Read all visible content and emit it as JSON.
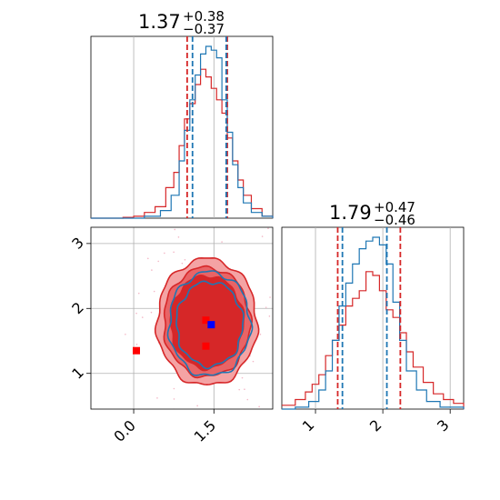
{
  "colors": {
    "red": "#d62728",
    "blue": "#1f77b4",
    "light_red": "#f4a3a4",
    "mid_red": "#e86466",
    "grid": "#b0b0b0",
    "marker_red": "#ff0000",
    "marker_blue": "#0000ff"
  },
  "chart_data": [
    {
      "type": "histogram",
      "panel": "top-left",
      "parameter_index": 0,
      "title": {
        "median": "1.37",
        "plus": "+0.38",
        "minus": "−0.37"
      },
      "xlim": [
        -0.8,
        2.6
      ],
      "grid": true,
      "ticks_shown": false,
      "quantiles": {
        "red": [
          1.0,
          1.75
        ],
        "blue": [
          1.1,
          1.73
        ]
      },
      "series": [
        {
          "color": "red",
          "bins": [
            [
              -0.8,
              0.0
            ],
            [
              -0.2,
              0.004
            ],
            [
              0.0,
              0.01
            ],
            [
              0.2,
              0.03
            ],
            [
              0.4,
              0.06
            ],
            [
              0.6,
              0.16
            ],
            [
              0.75,
              0.24
            ],
            [
              0.85,
              0.38
            ],
            [
              0.95,
              0.52
            ],
            [
              1.05,
              0.6
            ],
            [
              1.15,
              0.7
            ],
            [
              1.25,
              0.78
            ],
            [
              1.35,
              0.74
            ],
            [
              1.45,
              0.68
            ],
            [
              1.55,
              0.62
            ],
            [
              1.65,
              0.55
            ],
            [
              1.75,
              0.42
            ],
            [
              1.85,
              0.3
            ],
            [
              1.95,
              0.2
            ],
            [
              2.05,
              0.12
            ],
            [
              2.2,
              0.05
            ],
            [
              2.4,
              0.01
            ],
            [
              2.6,
              0.0
            ]
          ]
        },
        {
          "color": "blue",
          "bins": [
            [
              -0.8,
              0.0
            ],
            [
              0.2,
              0.01
            ],
            [
              0.5,
              0.04
            ],
            [
              0.7,
              0.12
            ],
            [
              0.85,
              0.3
            ],
            [
              0.95,
              0.46
            ],
            [
              1.05,
              0.62
            ],
            [
              1.15,
              0.75
            ],
            [
              1.25,
              0.86
            ],
            [
              1.35,
              0.9
            ],
            [
              1.45,
              0.88
            ],
            [
              1.55,
              0.84
            ],
            [
              1.65,
              0.62
            ],
            [
              1.75,
              0.45
            ],
            [
              1.85,
              0.28
            ],
            [
              1.95,
              0.16
            ],
            [
              2.05,
              0.08
            ],
            [
              2.2,
              0.03
            ],
            [
              2.4,
              0.01
            ],
            [
              2.6,
              0.0
            ]
          ]
        }
      ]
    },
    {
      "type": "histogram",
      "panel": "bottom-right",
      "parameter_index": 1,
      "title": {
        "median": "1.79",
        "plus": "+0.47",
        "minus": "−0.46"
      },
      "xlim": [
        0.5,
        3.2
      ],
      "xticks": [
        1,
        2,
        3
      ],
      "tick_labels": [
        "1",
        "2",
        "3"
      ],
      "grid": true,
      "quantiles": {
        "red": [
          1.33,
          2.26
        ],
        "blue": [
          1.4,
          2.06
        ]
      },
      "series": [
        {
          "color": "red",
          "bins": [
            [
              0.5,
              0.02
            ],
            [
              0.7,
              0.05
            ],
            [
              0.85,
              0.09
            ],
            [
              0.95,
              0.13
            ],
            [
              1.05,
              0.18
            ],
            [
              1.15,
              0.28
            ],
            [
              1.25,
              0.36
            ],
            [
              1.35,
              0.44
            ],
            [
              1.45,
              0.54
            ],
            [
              1.55,
              0.58
            ],
            [
              1.65,
              0.62
            ],
            [
              1.75,
              0.72
            ],
            [
              1.85,
              0.7
            ],
            [
              1.95,
              0.62
            ],
            [
              2.05,
              0.52
            ],
            [
              2.15,
              0.48
            ],
            [
              2.25,
              0.4
            ],
            [
              2.35,
              0.3
            ],
            [
              2.45,
              0.22
            ],
            [
              2.6,
              0.14
            ],
            [
              2.75,
              0.08
            ],
            [
              2.9,
              0.05
            ],
            [
              3.05,
              0.03
            ],
            [
              3.2,
              0.0
            ]
          ]
        },
        {
          "color": "blue",
          "bins": [
            [
              0.5,
              0.0
            ],
            [
              0.7,
              0.01
            ],
            [
              0.9,
              0.04
            ],
            [
              1.05,
              0.1
            ],
            [
              1.15,
              0.2
            ],
            [
              1.25,
              0.36
            ],
            [
              1.35,
              0.54
            ],
            [
              1.45,
              0.66
            ],
            [
              1.55,
              0.76
            ],
            [
              1.65,
              0.84
            ],
            [
              1.75,
              0.88
            ],
            [
              1.85,
              0.9
            ],
            [
              1.95,
              0.86
            ],
            [
              2.05,
              0.76
            ],
            [
              2.15,
              0.56
            ],
            [
              2.25,
              0.36
            ],
            [
              2.35,
              0.2
            ],
            [
              2.5,
              0.1
            ],
            [
              2.65,
              0.04
            ],
            [
              2.85,
              0.01
            ],
            [
              3.2,
              0.0
            ]
          ]
        }
      ]
    },
    {
      "type": "contour",
      "panel": "bottom-left",
      "x_parameter_index": 0,
      "y_parameter_index": 1,
      "xlim": [
        -0.8,
        2.6
      ],
      "ylim": [
        0.45,
        3.25
      ],
      "xticks": [
        0.0,
        1.5
      ],
      "tick_labels_x": [
        "0.0",
        "1.5"
      ],
      "yticks": [
        1,
        2,
        3
      ],
      "tick_labels_y": [
        "1",
        "2",
        "3"
      ],
      "grid": true,
      "contours": {
        "red": {
          "center": [
            1.37,
            1.79
          ],
          "sigma": [
            0.48,
            0.5
          ],
          "levels": [
            1.0,
            0.72,
            0.45
          ]
        },
        "blue": {
          "center": [
            1.42,
            1.76
          ],
          "sigma": [
            0.4,
            0.42
          ],
          "levels": [
            0.95,
            0.58
          ]
        }
      },
      "markers": [
        {
          "x": 0.05,
          "y": 1.35,
          "color": "marker_red"
        },
        {
          "x": 1.35,
          "y": 1.82,
          "color": "marker_red"
        },
        {
          "x": 1.35,
          "y": 1.42,
          "color": "marker_red"
        },
        {
          "x": 1.45,
          "y": 1.75,
          "color": "marker_blue"
        }
      ]
    }
  ]
}
